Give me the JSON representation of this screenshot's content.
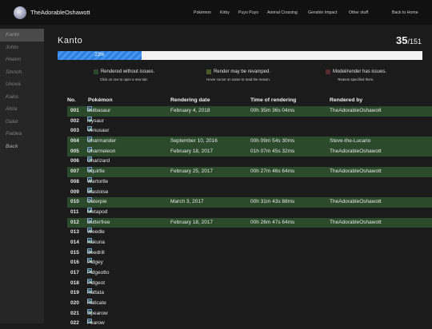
{
  "site_title": "TheAdorableOshawott",
  "nav": [
    "Pokémon",
    "Kirby",
    "Puyo Puyo",
    "Animal Crossing",
    "Genshin Impact",
    "Other stuff",
    "Back to Home"
  ],
  "sidebar": [
    "Kanto",
    "Johto",
    "Hoenn",
    "Sinnoh",
    "Unova",
    "Kalos",
    "Alola",
    "Galar",
    "Paldea",
    "Back"
  ],
  "region_title": "Kanto",
  "count": "35",
  "total": "/151",
  "progress": {
    "percent": 23,
    "label": "23%",
    "fill_color": "#2d7fe0"
  },
  "legend": [
    {
      "label": "Rendered without issues.",
      "note": "Click on row to open a new tab.",
      "color": "#2b4a2b"
    },
    {
      "label": "Render may be revamped.",
      "note": "Hover cursor on name to read the reason.",
      "color": "#4a5a2a"
    },
    {
      "label": "Model/render has issues.",
      "note": "Reason specified there.",
      "color": "#5a2a30"
    }
  ],
  "columns": [
    "No.",
    "Pokémon",
    "Rendering date",
    "Time of rendering",
    "Rendered by"
  ],
  "rows": [
    {
      "no": "001",
      "name": "Bulbasaur",
      "date": "February 4, 2018",
      "time": "00h 35m 36s 04ms",
      "by": "TheAdorableOshawott",
      "status": "green"
    },
    {
      "no": "002",
      "name": "Ivysaur",
      "date": "",
      "time": "",
      "by": "",
      "status": ""
    },
    {
      "no": "003",
      "name": "Venusaur",
      "date": "",
      "time": "",
      "by": "",
      "status": ""
    },
    {
      "no": "004",
      "name": "Charmander",
      "date": "September 10, 2016",
      "time": "00h 09m 54s 30ms",
      "by": "Steve-the-Lucario",
      "status": "green"
    },
    {
      "no": "005",
      "name": "Charmeleon",
      "date": "February 18, 2017",
      "time": "01h 07m 45s 32ms",
      "by": "TheAdorableOshawott",
      "status": "green"
    },
    {
      "no": "006",
      "name": "Charizard",
      "date": "",
      "time": "",
      "by": "",
      "status": ""
    },
    {
      "no": "007",
      "name": "Squirtle",
      "date": "February 25, 2017",
      "time": "00h 27m 46s 64ms",
      "by": "TheAdorableOshawott",
      "status": "green"
    },
    {
      "no": "008",
      "name": "Wartortle",
      "date": "",
      "time": "",
      "by": "",
      "status": ""
    },
    {
      "no": "009",
      "name": "Blastoise",
      "date": "",
      "time": "",
      "by": "",
      "status": ""
    },
    {
      "no": "010",
      "name": "Caterpie",
      "date": "March 3, 2017",
      "time": "00h 31m 43s 88ms",
      "by": "TheAdorableOshawott",
      "status": "green"
    },
    {
      "no": "011",
      "name": "Metapod",
      "date": "",
      "time": "",
      "by": "",
      "status": ""
    },
    {
      "no": "012",
      "name": "Butterfree",
      "date": "February 18, 2017",
      "time": "00h 26m 47s 64ms",
      "by": "TheAdorableOshawott",
      "status": "green"
    },
    {
      "no": "013",
      "name": "Weedle",
      "date": "",
      "time": "",
      "by": "",
      "status": ""
    },
    {
      "no": "014",
      "name": "Kakuna",
      "date": "",
      "time": "",
      "by": "",
      "status": ""
    },
    {
      "no": "015",
      "name": "Beedrill",
      "date": "",
      "time": "",
      "by": "",
      "status": ""
    },
    {
      "no": "016",
      "name": "Pidgey",
      "date": "",
      "time": "",
      "by": "",
      "status": ""
    },
    {
      "no": "017",
      "name": "Pidgeotto",
      "date": "",
      "time": "",
      "by": "",
      "status": ""
    },
    {
      "no": "018",
      "name": "Pidgeot",
      "date": "",
      "time": "",
      "by": "",
      "status": ""
    },
    {
      "no": "019",
      "name": "Rattata",
      "date": "",
      "time": "",
      "by": "",
      "status": ""
    },
    {
      "no": "020",
      "name": "Raticate",
      "date": "",
      "time": "",
      "by": "",
      "status": ""
    },
    {
      "no": "021",
      "name": "Spearow",
      "date": "",
      "time": "",
      "by": "",
      "status": ""
    },
    {
      "no": "022",
      "name": "Fearow",
      "date": "",
      "time": "",
      "by": "",
      "status": ""
    }
  ]
}
